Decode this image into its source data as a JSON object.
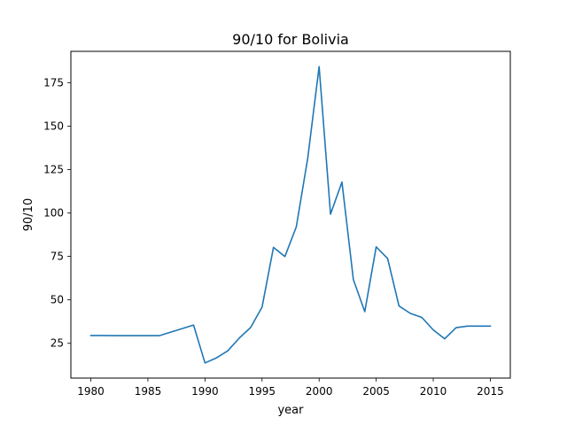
{
  "chart_data": {
    "type": "line",
    "title": "90/10 for Bolivia",
    "xlabel": "year",
    "ylabel": "90/10",
    "xlim": [
      1978.25,
      2016.75
    ],
    "ylim": [
      5,
      193
    ],
    "xticks": [
      1980,
      1985,
      1990,
      1995,
      2000,
      2005,
      2010,
      2015
    ],
    "yticks": [
      25,
      50,
      75,
      100,
      125,
      150,
      175
    ],
    "grid": false,
    "line_color": "#1f77b4",
    "series": [
      {
        "x": [
          1980,
          1981,
          1982,
          1983,
          1984,
          1985,
          1986,
          1989,
          1990,
          1991,
          1992,
          1993,
          1994,
          1995,
          1996,
          1997,
          1998,
          1999,
          2000,
          2001,
          2002,
          2003,
          2004,
          2005,
          2006,
          2007,
          2008,
          2009,
          2010,
          2011,
          2012,
          2013,
          2014,
          2015
        ],
        "y": [
          29.5,
          29.5,
          29.4,
          29.4,
          29.4,
          29.4,
          29.4,
          35.5,
          13.7,
          16.6,
          20.7,
          28.0,
          34.1,
          45.8,
          80.2,
          74.9,
          92.0,
          131.4,
          184.2,
          99.3,
          117.8,
          61.7,
          43.2,
          80.5,
          73.8,
          46.5,
          42.2,
          39.9,
          32.7,
          27.6,
          34.0,
          34.9,
          34.9,
          34.9
        ]
      }
    ]
  }
}
